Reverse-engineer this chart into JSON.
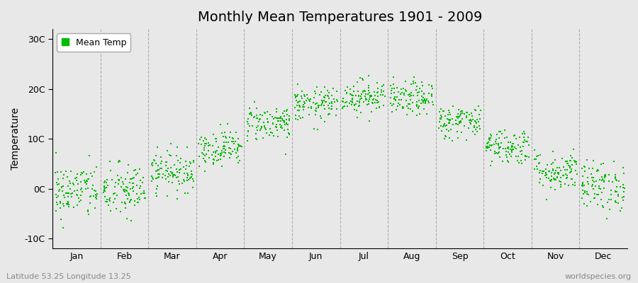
{
  "title": "Monthly Mean Temperatures 1901 - 2009",
  "ylabel": "Temperature",
  "xlabel_labels": [
    "Jan",
    "Feb",
    "Mar",
    "Apr",
    "May",
    "Jun",
    "Jul",
    "Aug",
    "Sep",
    "Oct",
    "Nov",
    "Dec"
  ],
  "ytick_labels": [
    "-10C",
    "0C",
    "10C",
    "20C",
    "30C"
  ],
  "ytick_values": [
    -10,
    0,
    10,
    20,
    30
  ],
  "ylim": [
    -12,
    32
  ],
  "xlim": [
    0,
    12
  ],
  "dot_color": "#00bb00",
  "dot_size": 3,
  "background_color": "#e8e8e8",
  "plot_bg_color": "#e8e8e8",
  "legend_label": "Mean Temp",
  "footer_left": "Latitude 53.25 Longitude 13.25",
  "footer_right": "worldspecies.org",
  "title_fontsize": 14,
  "label_fontsize": 10,
  "tick_fontsize": 9,
  "years": 109,
  "monthly_means": [
    -0.5,
    -0.5,
    3.5,
    8.2,
    13.2,
    16.8,
    18.5,
    18.0,
    13.5,
    8.5,
    3.5,
    0.5
  ],
  "monthly_stds": [
    2.8,
    2.8,
    2.0,
    1.8,
    1.8,
    1.7,
    1.7,
    1.7,
    1.7,
    1.8,
    2.0,
    2.5
  ],
  "dashed_line_color": "#888888",
  "dashed_line_positions": [
    1,
    2,
    3,
    4,
    5,
    6,
    7,
    8,
    9,
    10,
    11
  ]
}
